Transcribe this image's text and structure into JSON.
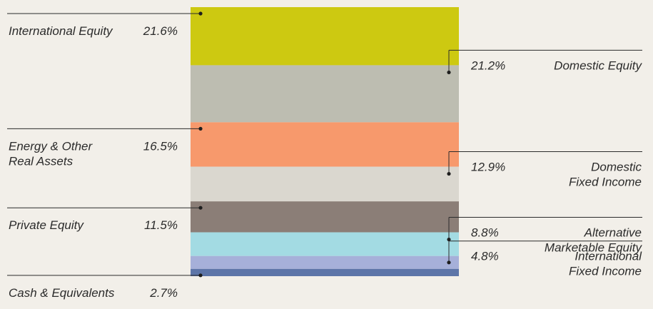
{
  "chart_data": {
    "type": "bar",
    "stacked": true,
    "orientation": "vertical",
    "series": [
      {
        "name": "International Equity",
        "label_lines": [
          "International Equity"
        ],
        "value": 21.6,
        "value_label": "21.6%",
        "color": "#cdc911",
        "side": "left"
      },
      {
        "name": "Domestic Equity",
        "label_lines": [
          "Domestic Equity"
        ],
        "value": 21.2,
        "value_label": "21.2%",
        "color": "#bdbdb1",
        "side": "right"
      },
      {
        "name": "Energy & Other Real Assets",
        "label_lines": [
          "Energy & Other",
          "Real Assets"
        ],
        "value": 16.5,
        "value_label": "16.5%",
        "color": "#f7996c",
        "side": "left"
      },
      {
        "name": "Domestic Fixed Income",
        "label_lines": [
          "Domestic",
          "Fixed Income"
        ],
        "value": 12.9,
        "value_label": "12.9%",
        "color": "#dad7cf",
        "side": "right"
      },
      {
        "name": "Private Equity",
        "label_lines": [
          "Private Equity"
        ],
        "value": 11.5,
        "value_label": "11.5%",
        "color": "#8b7e77",
        "side": "left"
      },
      {
        "name": "Alternative Marketable Equity",
        "label_lines": [
          "Alternative",
          "Marketable Equity"
        ],
        "value": 8.8,
        "value_label": "8.8%",
        "color": "#a3dbe3",
        "side": "right"
      },
      {
        "name": "International Fixed Income",
        "label_lines": [
          "International",
          "Fixed Income"
        ],
        "value": 4.8,
        "value_label": "4.8%",
        "color": "#a6b0d9",
        "side": "right"
      },
      {
        "name": "Cash & Equivalents",
        "label_lines": [
          "Cash & Equivalents"
        ],
        "value": 2.7,
        "value_label": "2.7%",
        "color": "#5d75a8",
        "side": "left"
      }
    ],
    "ylim": [
      0,
      100
    ],
    "grid": false,
    "legend": "none"
  }
}
